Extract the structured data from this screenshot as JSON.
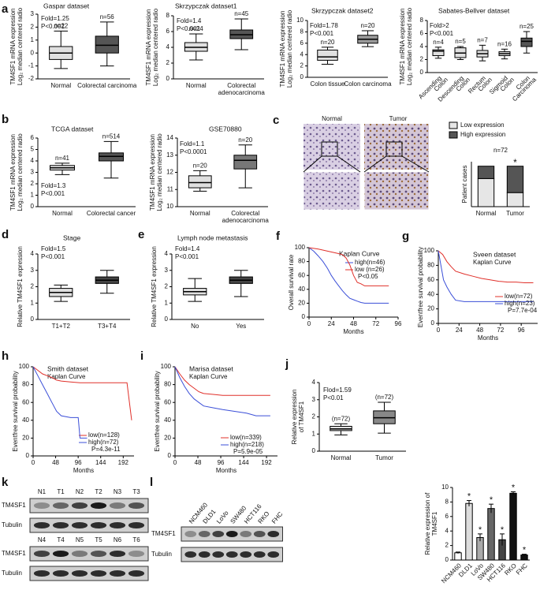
{
  "chart_data": [
    {
      "type": "box",
      "panel": "a",
      "title": "Gaspar dataset",
      "annotations": [
        "Fold=1.25",
        "P<0.001"
      ],
      "ylabel": [
        "TM4SF1 mRNA expression",
        "Log₂ median centered radio"
      ],
      "categories": [
        [
          "Normal"
        ],
        [
          "Colorectal carcinoma"
        ]
      ],
      "n_labels": [
        "n=22",
        "n=56"
      ],
      "values": [
        [
          -1.2,
          -0.5,
          0,
          0.5,
          1.7
        ],
        [
          -1,
          0,
          0.6,
          1.3,
          2.4
        ]
      ],
      "colors": [
        "#e0e0e0",
        "#555555"
      ],
      "ylim": [
        -2,
        3
      ],
      "yticks": [
        -2,
        -1,
        0,
        1,
        2,
        3
      ]
    },
    {
      "type": "box",
      "title": "Skrzypczak dataset1",
      "annotations": [
        "Fold=1.4",
        "P<0.001"
      ],
      "ylabel": [
        "TM4SF1 mRNA expression",
        "Log₂ median centered radio"
      ],
      "categories": [
        [
          "Normal"
        ],
        [
          "Colorectal",
          "adenocarcinoma"
        ]
      ],
      "n_labels": [
        "n=24",
        "n=45"
      ],
      "values": [
        [
          2.4,
          3.5,
          4,
          4.6,
          5.7
        ],
        [
          3.7,
          5.1,
          5.6,
          6.2,
          7.6
        ]
      ],
      "colors": [
        "#e0e0e0",
        "#555555"
      ],
      "ylim": [
        0,
        8
      ],
      "yticks": [
        0,
        2,
        4,
        6,
        8
      ]
    },
    {
      "type": "box",
      "title": "Skrzypczak dataset2",
      "annotations": [
        "Fold=1.78",
        "P<0.001"
      ],
      "ylabel": [
        "TM4SF1 mRNA expression",
        "Log₂ median centered radio"
      ],
      "categories": [
        [
          "Colon tissue"
        ],
        [
          "Colon carcinoma"
        ]
      ],
      "n_labels": [
        "n=20",
        "n=20"
      ],
      "values": [
        [
          2.3,
          3,
          3.6,
          4.8,
          5.3
        ],
        [
          5.4,
          6,
          6.7,
          7.4,
          8.2
        ]
      ],
      "colors": [
        "#e0e0e0",
        "#999999"
      ],
      "ylim": [
        0,
        10
      ],
      "yticks": [
        0,
        2,
        4,
        6,
        8,
        10
      ]
    },
    {
      "type": "box",
      "title": "Sabates-Bellver dataset",
      "annotations": [
        "Fold>2",
        "P<0.001"
      ],
      "ylabel": [
        "TM4SF1 mRNA expression",
        "Log₂ median centered radio"
      ],
      "categories": [
        [
          "Ascending",
          "Colon"
        ],
        [
          "Descending",
          "Colon"
        ],
        [
          "Rectum",
          "Colon"
        ],
        [
          "Sigmoid",
          "Colon"
        ],
        [
          "Colon",
          "Carcinoma"
        ]
      ],
      "n_labels": [
        "n=4",
        "n=5",
        "n=7",
        "n=16",
        "n=25"
      ],
      "values": [
        [
          2.2,
          2.6,
          3.3,
          3.5,
          3.9
        ],
        [
          2,
          2.3,
          3,
          3.8,
          4
        ],
        [
          1.8,
          2.4,
          2.9,
          3.4,
          4.2
        ],
        [
          2.1,
          2.6,
          2.9,
          3.2,
          3.6
        ],
        [
          3,
          4,
          4.8,
          5.3,
          6.3
        ]
      ],
      "colors": [
        "#e0e0e0",
        "#e0e0e0",
        "#e0e0e0",
        "#e0e0e0",
        "#555555"
      ],
      "ylim": [
        0,
        8
      ],
      "yticks": [
        0,
        2,
        4,
        6,
        8
      ]
    },
    {
      "type": "box",
      "panel": "b",
      "title": "TCGA dataset",
      "annotations": [
        "Fold=1.3",
        "P<0.001"
      ],
      "ylabel": [
        "TM4SF1 mRNA expression",
        "Log₂ median centered radio"
      ],
      "categories": [
        [
          "Normal"
        ],
        [
          "Colorectal cancer"
        ]
      ],
      "n_labels": [
        "n=41",
        "n=514"
      ],
      "values": [
        [
          2.8,
          3.2,
          3.4,
          3.6,
          3.8
        ],
        [
          2.5,
          4,
          4.4,
          4.7,
          5.7
        ]
      ],
      "colors": [
        "#e0e0e0",
        "#555555"
      ],
      "ylim": [
        0,
        6
      ],
      "yticks": [
        0,
        1,
        2,
        3,
        4,
        5,
        6
      ]
    },
    {
      "type": "box",
      "title": "GSE70880",
      "annotations": [
        "Fold=1.1",
        "P<0.0001"
      ],
      "ylabel": [
        "TM4SF1 mRNA expression",
        "Log₂ median centered radio"
      ],
      "categories": [
        [
          "Normal"
        ],
        [
          "Colorectal",
          "adenocarcinoma"
        ]
      ],
      "n_labels": [
        "n=20",
        "n=20"
      ],
      "values": [
        [
          10.9,
          11.1,
          11.4,
          11.8,
          12.1
        ],
        [
          11.1,
          12.2,
          12.7,
          13,
          13.6
        ]
      ],
      "colors": [
        "#e0e0e0",
        "#777777"
      ],
      "ylim": [
        10,
        14
      ],
      "yticks": [
        10,
        11,
        12,
        13,
        14
      ]
    },
    {
      "type": "stacked-bar",
      "annotations": [
        "n=72"
      ],
      "ylabel": [
        "Patient cases"
      ],
      "categories": [
        [
          "Normal"
        ],
        [
          "Tumor"
        ]
      ],
      "series": [
        {
          "name": "Low expression",
          "color": "#e6e6e6",
          "values": [
            50,
            25
          ]
        },
        {
          "name": "High expression",
          "color": "#555555",
          "values": [
            22,
            47
          ]
        }
      ],
      "significance": [
        null,
        "*"
      ],
      "ylim": [
        0,
        80
      ]
    },
    {
      "type": "box",
      "panel": "d",
      "title": "Stage",
      "annotations": [
        "Fold=1.5",
        "P<0.001"
      ],
      "ylabel": [
        "Relative TM4SF1 expression"
      ],
      "categories": [
        [
          "T1+T2"
        ],
        [
          "T3+T4"
        ]
      ],
      "values": [
        [
          1.1,
          1.4,
          1.65,
          1.9,
          2.1
        ],
        [
          1.6,
          2.2,
          2.4,
          2.6,
          3
        ]
      ],
      "colors": [
        "#e0e0e0",
        "#444444"
      ],
      "ylim": [
        0,
        4
      ],
      "yticks": [
        0,
        1,
        2,
        3,
        4
      ]
    },
    {
      "type": "box",
      "panel": "e",
      "title": "Lymph node metastasis",
      "annotations": [
        "Fold=1.4",
        "P<0.001"
      ],
      "ylabel": [
        "Relative TM4SF1 expression"
      ],
      "categories": [
        [
          "No"
        ],
        [
          "Yes"
        ]
      ],
      "values": [
        [
          1.1,
          1.5,
          1.7,
          1.9,
          2.5
        ],
        [
          1.4,
          2.2,
          2.4,
          2.6,
          3
        ]
      ],
      "colors": [
        "#e0e0e0",
        "#444444"
      ],
      "ylim": [
        0,
        4
      ],
      "yticks": [
        0,
        1,
        2,
        3,
        4
      ]
    },
    {
      "type": "survival",
      "panel": "f",
      "title": "Kaplan Curve",
      "ylabel": [
        "Overall survival rate"
      ],
      "xlabel": "Months",
      "annotations": [
        "P<0.05"
      ],
      "legend": "upper right",
      "series": [
        {
          "name": "high(n=46)",
          "color": "#3b4fd8",
          "x": [
            0,
            5,
            10,
            15,
            20,
            24,
            28,
            32,
            36,
            40,
            44,
            48,
            52,
            56,
            60,
            64,
            86
          ],
          "values": [
            100,
            95,
            88,
            80,
            70,
            60,
            52,
            45,
            38,
            32,
            27,
            25,
            23,
            21,
            20,
            20,
            20
          ]
        },
        {
          "name": "low (n=26)",
          "color": "#e0302a",
          "x": [
            0,
            10,
            20,
            30,
            36,
            40,
            44,
            48,
            52,
            56,
            60,
            86
          ],
          "values": [
            100,
            98,
            95,
            92,
            90,
            85,
            75,
            60,
            50,
            48,
            45,
            45
          ]
        }
      ],
      "xlim": [
        0,
        96
      ],
      "xticks": [
        0,
        24,
        48,
        72,
        96
      ],
      "ylim": [
        0,
        100
      ],
      "yticks": [
        0,
        20,
        40,
        60,
        80,
        100
      ]
    },
    {
      "type": "survival",
      "panel": "g",
      "title": "Sveen dataset",
      "subtitle": "Kaplan Curve",
      "ylabel": [
        "Eventfree survival probability"
      ],
      "xlabel": "Months",
      "annotations": [
        "P=7.7e-04"
      ],
      "legend": "lower right",
      "series": [
        {
          "name": "low(n=72)",
          "color": "#e0302a",
          "x": [
            0,
            5,
            10,
            15,
            20,
            30,
            40,
            50,
            60,
            70,
            80,
            90,
            100,
            110
          ],
          "values": [
            100,
            95,
            85,
            78,
            72,
            68,
            65,
            62,
            60,
            58,
            57,
            57,
            56,
            56
          ]
        },
        {
          "name": "high(n=23)",
          "color": "#3b4fd8",
          "x": [
            0,
            3,
            6,
            10,
            15,
            20,
            30,
            40,
            60,
            100,
            110
          ],
          "values": [
            100,
            80,
            60,
            50,
            40,
            32,
            30,
            30,
            30,
            30,
            30
          ]
        }
      ],
      "xlim": [
        0,
        115
      ],
      "xticks": [
        0,
        24,
        48,
        72,
        96
      ],
      "ylim": [
        0,
        100
      ],
      "yticks": [
        0,
        20,
        40,
        60,
        80,
        100
      ]
    },
    {
      "type": "survival",
      "panel": "h",
      "title": "Smith dataset",
      "subtitle": "Kaplan Curve",
      "ylabel": [
        "Eventfree survival probability"
      ],
      "xlabel": "Months",
      "annotations": [
        "P=4.3e-11"
      ],
      "legend": "lower right",
      "series": [
        {
          "name": "low(n=128)",
          "color": "#e0302a",
          "x": [
            0,
            10,
            20,
            30,
            40,
            50,
            60,
            80,
            100,
            200,
            210
          ],
          "values": [
            100,
            96,
            92,
            90,
            88,
            85,
            84,
            83,
            82,
            82,
            40
          ]
        },
        {
          "name": "high(n=72)",
          "color": "#3b4fd8",
          "x": [
            0,
            10,
            20,
            30,
            40,
            50,
            60,
            80,
            96,
            100,
            110,
            115
          ],
          "values": [
            100,
            90,
            80,
            70,
            60,
            50,
            45,
            43,
            43,
            20,
            20,
            20
          ]
        }
      ],
      "xlim": [
        0,
        215
      ],
      "xticks": [
        0,
        48,
        96,
        144,
        192
      ],
      "ylim": [
        0,
        100
      ],
      "yticks": [
        0,
        20,
        40,
        60,
        80,
        100
      ]
    },
    {
      "type": "survival",
      "panel": "i",
      "title": "Marisa dataset",
      "subtitle": "Kaplan Curve",
      "ylabel": [
        "Eventfree survival probability"
      ],
      "xlabel": "Months",
      "annotations": [
        "P=5.9e-05"
      ],
      "legend": "lower right",
      "series": [
        {
          "name": "low(n=339)",
          "color": "#e0302a",
          "x": [
            0,
            10,
            20,
            30,
            40,
            50,
            60,
            80,
            100,
            150,
            200
          ],
          "values": [
            100,
            92,
            85,
            80,
            76,
            72,
            70,
            69,
            68,
            68,
            68
          ]
        },
        {
          "name": "high(n=218)",
          "color": "#3b4fd8",
          "x": [
            0,
            10,
            20,
            30,
            40,
            50,
            60,
            80,
            100,
            150,
            170,
            200
          ],
          "values": [
            100,
            88,
            78,
            70,
            64,
            60,
            56,
            54,
            52,
            48,
            45,
            45
          ]
        }
      ],
      "xlim": [
        0,
        215
      ],
      "xticks": [
        0,
        48,
        96,
        144,
        192
      ],
      "ylim": [
        0,
        100
      ],
      "yticks": [
        0,
        20,
        40,
        60,
        80,
        100
      ]
    },
    {
      "type": "box",
      "panel": "j",
      "annotations": [
        "Flod=1.59",
        "P<0.01"
      ],
      "ylabel": [
        "Relative expression",
        "of TM4SF1"
      ],
      "categories": [
        [
          "Normal"
        ],
        [
          "Tumor"
        ]
      ],
      "n_labels": [
        "(n=72)",
        "(n=72)"
      ],
      "values": [
        [
          0.95,
          1.2,
          1.3,
          1.45,
          1.6
        ],
        [
          1.05,
          1.6,
          1.95,
          2.35,
          2.85
        ]
      ],
      "colors": [
        "#e0e0e0",
        "#888888"
      ],
      "ylim": [
        0,
        4
      ],
      "yticks": [
        0,
        1,
        2,
        3,
        4
      ]
    },
    {
      "type": "bar",
      "ylabel": [
        "Relative expression of",
        "TM4SF1"
      ],
      "categories": [
        [
          "NCM460"
        ],
        [
          "DLD1"
        ],
        [
          "LoVo"
        ],
        [
          "SW480"
        ],
        [
          "HCT116"
        ],
        [
          "RKO"
        ],
        [
          "FHC"
        ]
      ],
      "values": [
        1,
        7.8,
        3.1,
        7.1,
        2.8,
        9.2,
        0.7
      ],
      "errors": [
        0.1,
        0.4,
        0.5,
        0.6,
        0.8,
        0.2,
        0.1
      ],
      "colors": [
        "#ffffff",
        "#dddddd",
        "#aaaaaa",
        "#666666",
        "#444444",
        "#111111",
        "#111111"
      ],
      "significance": [
        null,
        "*",
        "*",
        "*",
        "*",
        "*",
        "*"
      ],
      "ylim": [
        0,
        10
      ],
      "yticks": [
        0,
        2,
        4,
        6,
        8,
        10
      ]
    }
  ],
  "images": {
    "panel": "c",
    "labels": [
      "Normal",
      "Tumor"
    ]
  },
  "blots": [
    {
      "panel": "k",
      "groups": [
        {
          "lanes": [
            "N1",
            "T1",
            "N2",
            "T2",
            "N3",
            "T3"
          ],
          "rows": [
            "TM4SF1",
            "Tubulin"
          ]
        },
        {
          "lanes": [
            "N4",
            "T4",
            "N5",
            "T5",
            "N6",
            "T6"
          ],
          "rows": [
            "TM4SF1",
            "Tubulin"
          ]
        }
      ]
    },
    {
      "panel": "l",
      "groups": [
        {
          "lanes": [
            "NCM460",
            "DLD1",
            "LoVo",
            "SW480",
            "HCT116",
            "RKO",
            "FHC"
          ],
          "rows": [
            "TM4SF1",
            "Tubulin"
          ]
        }
      ]
    }
  ]
}
